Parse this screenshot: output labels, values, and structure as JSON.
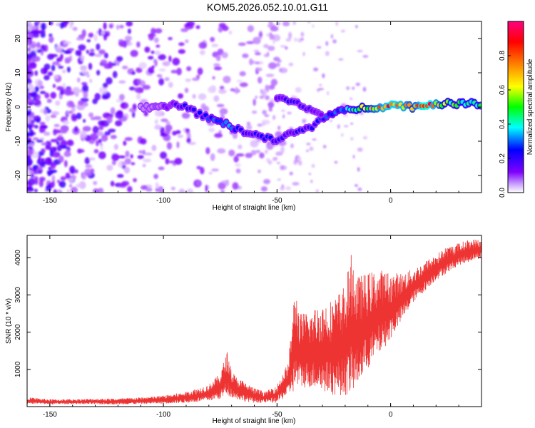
{
  "figure": {
    "title": "KOM5.2026.052.10.01.G11"
  },
  "chart_data": [
    {
      "type": "heatmap",
      "title": "",
      "xlabel": "Height of straight line (km)",
      "ylabel": "Frequency (Hz)",
      "xlim": [
        -160,
        40
      ],
      "ylim": [
        -25,
        25
      ],
      "xticks": [
        -150,
        -100,
        -50,
        0
      ],
      "yticks": [
        -20,
        -10,
        0,
        10,
        20
      ],
      "xtick_labels": [
        "-150",
        "-100",
        "-50",
        "0"
      ],
      "ytick_labels": [
        "-20",
        "-10",
        "0",
        "10",
        "20"
      ],
      "colorbar": {
        "label": "Normalized spectral amplitude",
        "range": [
          0,
          1
        ],
        "ticks": [
          0,
          0.2,
          0.4,
          0.6,
          0.8
        ],
        "tick_labels": [
          "0.0",
          "0.2",
          "0.4",
          "0.6",
          "0.8"
        ],
        "colormap": [
          "#ffffff",
          "#8000ff",
          "#0000ff",
          "#00ffff",
          "#00ff00",
          "#ffff00",
          "#ff8000",
          "#ff0000",
          "#ff0080"
        ]
      },
      "ridge": {
        "description_points_x_km": [
          -110,
          -100,
          -95,
          -90,
          -85,
          -80,
          -75,
          -70,
          -65,
          -60,
          -55,
          -50,
          -45,
          -40,
          -35,
          -30,
          -25,
          -20,
          -15,
          -10,
          -5,
          0,
          5,
          10,
          15,
          20,
          25,
          30,
          35,
          40
        ],
        "frequency_hz": [
          0,
          0,
          1,
          0,
          -2,
          -3,
          -4,
          -6,
          -7,
          -8,
          -9,
          -10,
          -8,
          -7,
          -6,
          -3,
          -2,
          -1,
          -0.5,
          0,
          0,
          0.5,
          0.5,
          0,
          0.5,
          1,
          1,
          1,
          1,
          1
        ],
        "amplitude": [
          0.05,
          0.1,
          0.15,
          0.2,
          0.2,
          0.25,
          0.3,
          0.3,
          0.2,
          0.2,
          0.25,
          0.2,
          0.15,
          0.2,
          0.2,
          0.25,
          0.3,
          0.3,
          0.45,
          0.6,
          0.7,
          0.8,
          0.75,
          0.6,
          0.9,
          0.7,
          0.5,
          0.45,
          0.45,
          0.45
        ]
      },
      "upper_branch": {
        "x_km": [
          -50,
          -45,
          -40,
          -35,
          -30
        ],
        "frequency_hz": [
          3,
          2,
          1,
          -1,
          -2
        ],
        "amplitude": [
          0.15,
          0.2,
          0.2,
          0.15,
          0.1
        ]
      }
    },
    {
      "type": "line",
      "title": "",
      "xlabel": "Height of straight line (km)",
      "ylabel": "SNR (10 * v/v)",
      "xlim": [
        -160,
        40
      ],
      "ylim": [
        0,
        4600
      ],
      "xticks": [
        -150,
        -100,
        -50,
        0
      ],
      "yticks": [
        1000,
        2000,
        3000,
        4000
      ],
      "xtick_labels": [
        "-150",
        "-100",
        "-50",
        "0"
      ],
      "ytick_labels": [
        "1000",
        "2000",
        "3000",
        "4000"
      ],
      "series": [
        {
          "name": "SNR",
          "color": "#ee3333",
          "envelope_x_km": [
            -160,
            -150,
            -140,
            -130,
            -120,
            -110,
            -100,
            -95,
            -90,
            -85,
            -80,
            -75,
            -72,
            -70,
            -68,
            -65,
            -60,
            -55,
            -50,
            -45,
            -42,
            -40,
            -35,
            -30,
            -25,
            -20,
            -17,
            -15,
            -10,
            -5,
            0,
            5,
            10,
            15,
            20,
            25,
            30,
            35,
            40
          ],
          "envelope_low": [
            80,
            60,
            70,
            60,
            60,
            70,
            80,
            90,
            100,
            120,
            150,
            200,
            300,
            250,
            200,
            150,
            100,
            100,
            100,
            300,
            400,
            500,
            500,
            400,
            300,
            300,
            300,
            500,
            1000,
            1400,
            1800,
            2300,
            2800,
            3100,
            3400,
            3600,
            3800,
            3900,
            4000
          ],
          "envelope_high": [
            250,
            200,
            200,
            220,
            220,
            250,
            300,
            350,
            400,
            500,
            600,
            900,
            1500,
            1000,
            800,
            700,
            500,
            400,
            600,
            1200,
            3300,
            2500,
            2600,
            2800,
            2900,
            3300,
            4200,
            3500,
            3600,
            3700,
            3600,
            3600,
            3700,
            3900,
            4100,
            4300,
            4400,
            4500,
            4500
          ]
        }
      ]
    }
  ]
}
